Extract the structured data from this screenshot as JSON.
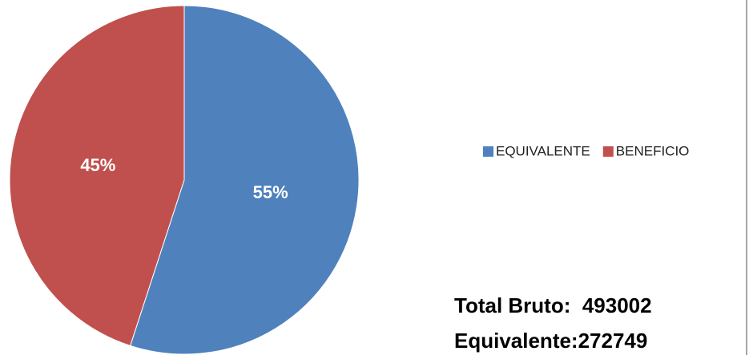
{
  "chart_data": {
    "type": "pie",
    "categories": [
      "EQUIVALENTE",
      "BENEFICIO"
    ],
    "values": [
      55,
      45
    ],
    "value_labels": [
      "55%",
      "45%"
    ],
    "colors": [
      "#4f81bd",
      "#c0504d"
    ],
    "legend": "right",
    "annotations": [
      "Total Bruto:  493002",
      "Equivalente:272749"
    ]
  }
}
